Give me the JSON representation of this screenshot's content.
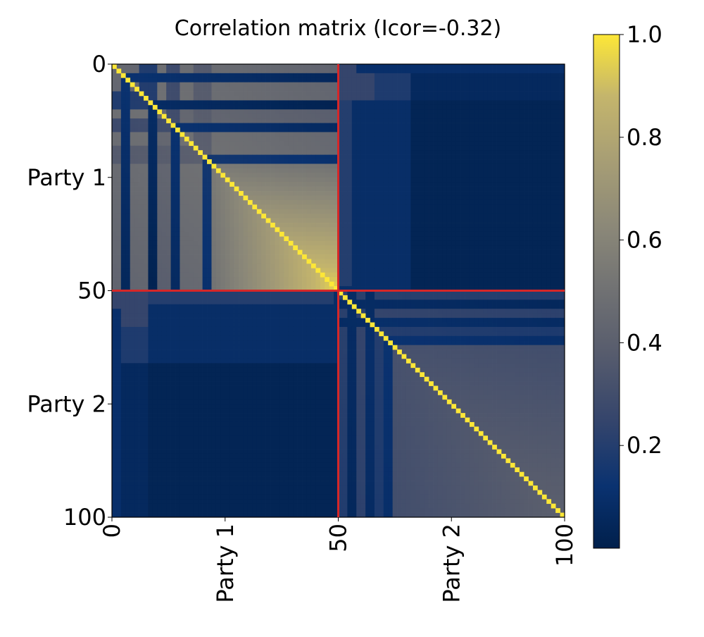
{
  "chart_data": {
    "type": "heatmap",
    "title": "Correlation matrix (Icor=-0.32)",
    "xlabel": "",
    "ylabel": "",
    "matrix_size": 100,
    "partition_index": 50,
    "x_ticks": [
      {
        "value": 0,
        "label": "0"
      },
      {
        "value": 25,
        "label": "Party 1"
      },
      {
        "value": 50,
        "label": "50"
      },
      {
        "value": 75,
        "label": "Party 2"
      },
      {
        "value": 100,
        "label": "100"
      }
    ],
    "y_ticks": [
      {
        "value": 0,
        "label": "0"
      },
      {
        "value": 25,
        "label": "Party 1"
      },
      {
        "value": 50,
        "label": "50"
      },
      {
        "value": 75,
        "label": "Party 2"
      },
      {
        "value": 100,
        "label": "100"
      }
    ],
    "divider_color": "#d62728",
    "colormap": "cividis",
    "colorbar": {
      "min": 0.0,
      "max": 1.0,
      "ticks": [
        {
          "value": 0.2,
          "label": "0.2"
        },
        {
          "value": 0.4,
          "label": "0.4"
        },
        {
          "value": 0.6,
          "label": "0.6"
        },
        {
          "value": 0.8,
          "label": "0.8"
        },
        {
          "value": 1.0,
          "label": "1.0"
        }
      ]
    },
    "blocks": {
      "party1_party1": {
        "value_range": [
          0.1,
          1.0
        ],
        "note_levels": [
          0.5,
          0.65,
          0.85,
          0.95
        ]
      },
      "party2_party2": {
        "value_range": [
          0.05,
          1.0
        ],
        "note_levels": [
          0.2,
          0.35,
          0.42
        ]
      },
      "cross": {
        "value_range": [
          0.0,
          0.3
        ],
        "typical": 0.05
      },
      "diagonal": 1.0
    }
  }
}
